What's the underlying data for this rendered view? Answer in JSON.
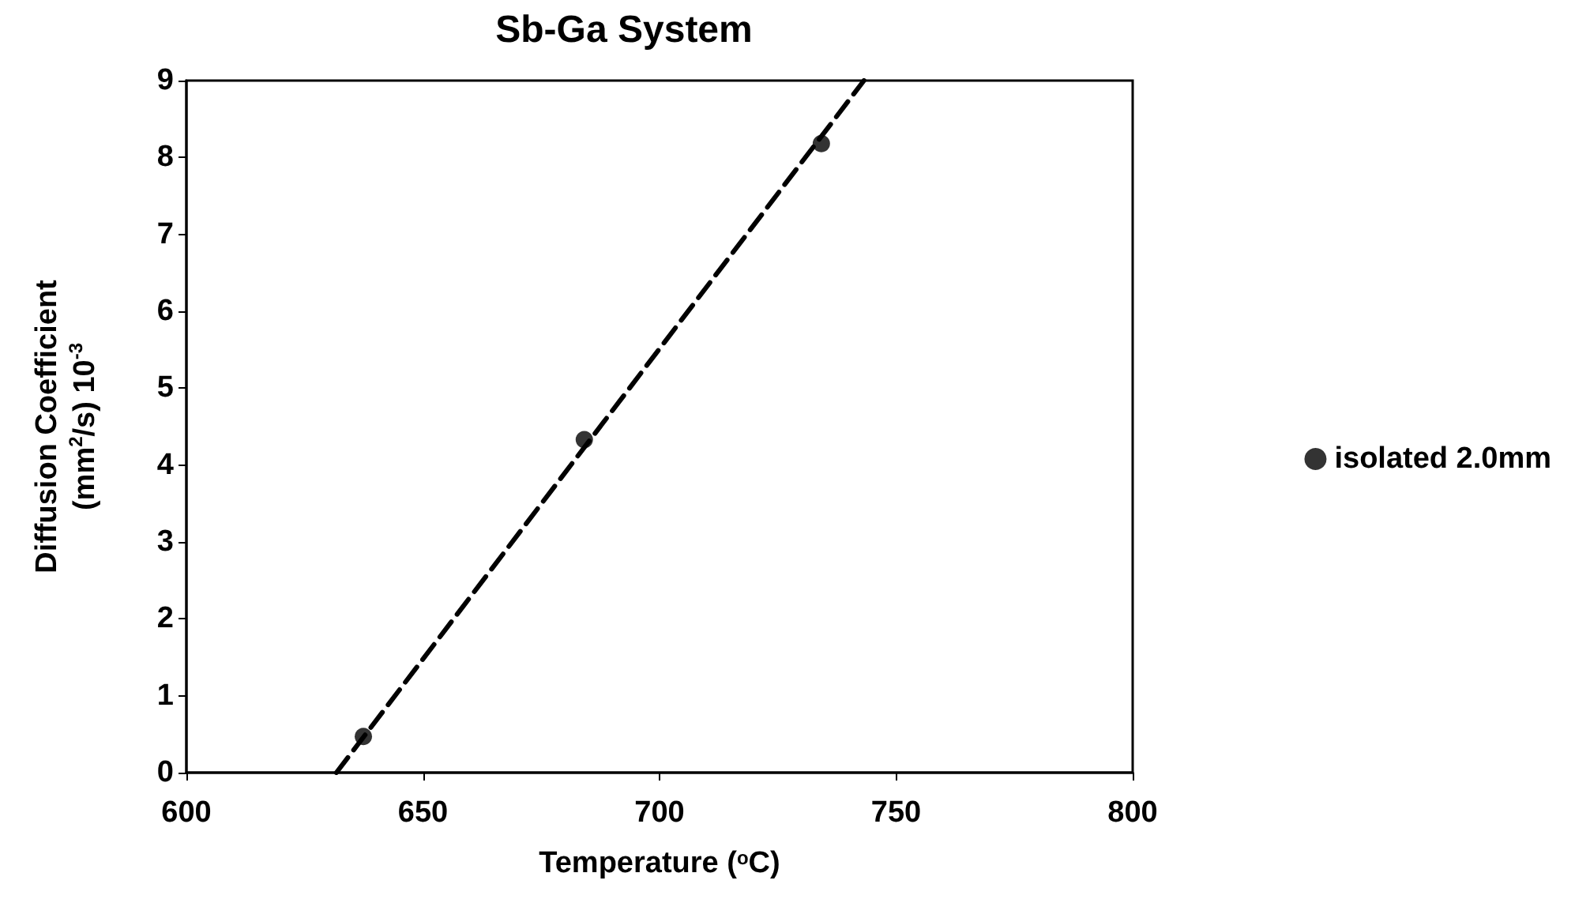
{
  "chart_data": {
    "type": "scatter",
    "title": "Sb-Ga System",
    "xlabel": "Temperature ($^{o}$C)",
    "ylabel": "Diffusion Coefficient\n(mm$^{2}$/s) 10$^{-3}$",
    "xlim": [
      600,
      800
    ],
    "xticks": [
      600,
      650,
      700,
      750,
      800
    ],
    "ylim": [
      0,
      9
    ],
    "yticks": [
      0,
      1,
      2,
      3,
      4,
      5,
      6,
      7,
      8,
      9
    ],
    "grid": false,
    "legend": "right",
    "marker": "circle",
    "series": [
      {
        "name": "isolated 2.0mm",
        "color": "#000000",
        "x": [
          637.4,
          684.1,
          734.2
        ],
        "values": [
          0.47,
          4.33,
          8.18
        ]
      },
      {
        "type": "line",
        "color": "#000000",
        "x": [
          631.7,
          743.2
        ],
        "values": [
          0,
          9
        ],
        "line_style": "dashed",
        "marker": "none"
      }
    ]
  }
}
